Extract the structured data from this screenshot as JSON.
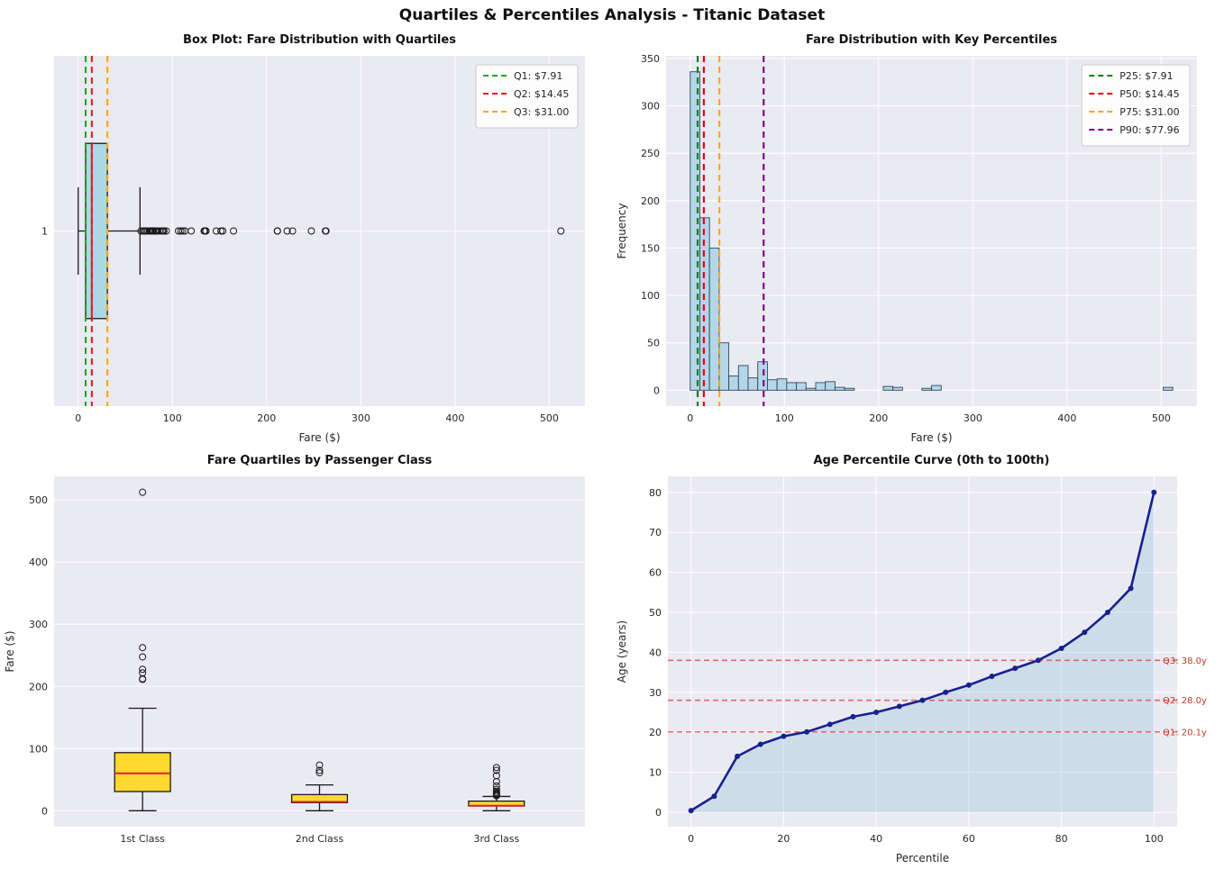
{
  "figure": {
    "title": "Quartiles & Percentiles Analysis - Titanic Dataset",
    "background": "#ffffff",
    "plot_background": "#eaeaf2",
    "grid_color": "#ffffff"
  },
  "chart_data": [
    {
      "id": "fare-boxplot",
      "type": "boxplot_horizontal",
      "title": "Box Plot: Fare Distribution with Quartiles",
      "xlabel": "Fare ($)",
      "xlim": [
        -25.6,
        537.9
      ],
      "ylim": [
        0.4,
        1.6
      ],
      "xticks": [
        0,
        100,
        200,
        300,
        400,
        500
      ],
      "yticks": [
        1
      ],
      "box": {
        "whisker_low": 0,
        "q1": 7.91,
        "median": 14.45,
        "q3": 31.0,
        "whisker_high": 65.6
      },
      "box_fill": "#add8e6",
      "median_color": "#d62728",
      "outliers": [
        66.6,
        69.3,
        69.55,
        71.0,
        71.28,
        73.5,
        75.25,
        76.29,
        76.73,
        77.96,
        78.27,
        78.85,
        79.2,
        79.65,
        80.0,
        81.86,
        82.17,
        83.16,
        83.47,
        86.5,
        89.1,
        90.0,
        91.08,
        93.5,
        106.43,
        108.9,
        110.88,
        113.28,
        120.0,
        133.65,
        134.5,
        135.63,
        146.52,
        151.55,
        153.46,
        164.87,
        211.34,
        211.5,
        221.78,
        227.53,
        247.52,
        262.38,
        263.0,
        512.33
      ],
      "ref_lines": [
        {
          "value": 7.91,
          "color": "#2ca02c",
          "label": "Q1: $7.91"
        },
        {
          "value": 14.45,
          "color": "#e02020",
          "label": "Q2: $14.45"
        },
        {
          "value": 31.0,
          "color": "#ffa500",
          "label": "Q3: $31.00"
        }
      ]
    },
    {
      "id": "fare-histogram",
      "type": "histogram",
      "title": "Fare Distribution with Key Percentiles",
      "xlabel": "Fare ($)",
      "ylabel": "Frequency",
      "xlim": [
        -25.6,
        537.9
      ],
      "ylim": [
        -16.8,
        352.8
      ],
      "xticks": [
        0,
        100,
        200,
        300,
        400,
        500
      ],
      "yticks": [
        0,
        50,
        100,
        150,
        200,
        250,
        300,
        350
      ],
      "bins": {
        "start": 0,
        "width": 10.2466
      },
      "counts": [
        336,
        182,
        150,
        50,
        15,
        26,
        13,
        30,
        11,
        12,
        8,
        8,
        2,
        8,
        9,
        3,
        2,
        0,
        0,
        0,
        4,
        3,
        0,
        0,
        2,
        5,
        0,
        0,
        0,
        0,
        0,
        0,
        0,
        0,
        0,
        0,
        0,
        0,
        0,
        0,
        0,
        0,
        0,
        0,
        0,
        0,
        0,
        0,
        0,
        3
      ],
      "bar_fill": "#b4d6e8",
      "bar_edge": "#33475c",
      "ref_lines": [
        {
          "value": 7.91,
          "color": "#008000",
          "label": "P25: $7.91"
        },
        {
          "value": 14.45,
          "color": "#e80000",
          "label": "P50: $14.45"
        },
        {
          "value": 31.0,
          "color": "#ffa500",
          "label": "P75: $31.00"
        },
        {
          "value": 77.96,
          "color": "#800080",
          "label": "P90: $77.96"
        }
      ]
    },
    {
      "id": "fare-by-class-boxplot",
      "type": "boxplot_vertical",
      "title": "Fare Quartiles by Passenger Class",
      "ylabel": "Fare ($)",
      "ylim": [
        -25.6,
        537.9
      ],
      "yticks": [
        0,
        100,
        200,
        300,
        400,
        500
      ],
      "categories": [
        "1st Class",
        "2nd Class",
        "3rd Class"
      ],
      "box_fill": "#ffd92f",
      "median_color": "#d62728",
      "boxes": [
        {
          "whisker_low": 0,
          "q1": 30.92,
          "median": 60.29,
          "q3": 93.5,
          "whisker_high": 164.87,
          "outliers": [
            211.34,
            212.33,
            221.78,
            227.53,
            247.52,
            262.38,
            512.33
          ]
        },
        {
          "whisker_low": 0,
          "q1": 13.0,
          "median": 14.25,
          "q3": 26.0,
          "whisker_high": 41.58,
          "outliers": [
            61.18,
            65.0,
            73.5
          ]
        },
        {
          "whisker_low": 0,
          "q1": 7.75,
          "median": 8.05,
          "q3": 15.5,
          "whisker_high": 23.0,
          "outliers": [
            24.15,
            25.47,
            26.29,
            27.9,
            29.13,
            31.39,
            34.38,
            39.69,
            46.9,
            56.5,
            65.0,
            69.55
          ]
        }
      ]
    },
    {
      "id": "age-percentile-curve",
      "type": "line",
      "title": "Age Percentile Curve (0th to 100th)",
      "xlabel": "Percentile",
      "ylabel": "Age (years)",
      "xlim": [
        -5,
        105
      ],
      "ylim": [
        -3.6,
        84
      ],
      "xticks": [
        0,
        20,
        40,
        60,
        80,
        100
      ],
      "yticks": [
        0,
        10,
        20,
        30,
        40,
        50,
        60,
        70,
        80
      ],
      "x": [
        0,
        5,
        10,
        15,
        20,
        25,
        30,
        35,
        40,
        45,
        50,
        55,
        60,
        65,
        70,
        75,
        80,
        85,
        90,
        95,
        100
      ],
      "y": [
        0.42,
        4.0,
        14.0,
        17.0,
        19.0,
        20.1,
        22.0,
        23.9,
        25.0,
        26.5,
        28.0,
        30.0,
        31.8,
        34.0,
        36.0,
        38.0,
        41.0,
        45.0,
        50.0,
        56.0,
        80.0
      ],
      "line_color": "#16228e",
      "fill_color": "#aecbe0",
      "fill_opacity": 0.45,
      "hline_label_color": "#c0392b",
      "hlines": [
        {
          "value": 20.1,
          "label": "Q1: 20.1y",
          "color": "#e05050"
        },
        {
          "value": 28.0,
          "label": "Q2: 28.0y",
          "color": "#e05050"
        },
        {
          "value": 38.0,
          "label": "Q3: 38.0y",
          "color": "#e05050"
        }
      ]
    }
  ]
}
